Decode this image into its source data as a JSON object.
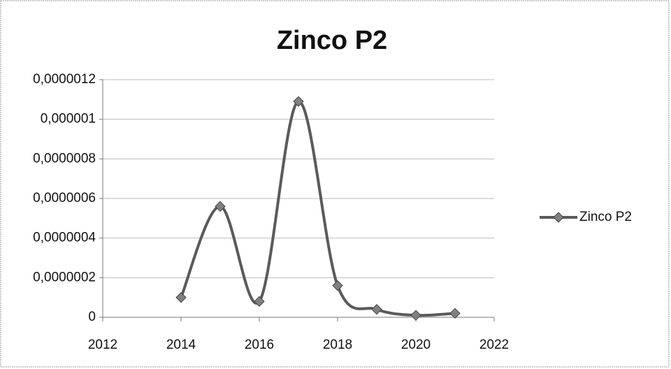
{
  "chart_data": {
    "type": "scatter-smooth",
    "title": "Zinco P2",
    "x": [
      2014,
      2015,
      2016,
      2017,
      2018,
      2019,
      2020,
      2021
    ],
    "series": [
      {
        "name": "Zinco P2",
        "color": "#5a5a5a",
        "values": [
          1e-07,
          5.6e-07,
          8e-08,
          1.09e-06,
          1.6e-07,
          4e-08,
          1e-08,
          2e-08
        ]
      }
    ],
    "xlim": [
      2012,
      2022
    ],
    "xticks": [
      2012,
      2014,
      2016,
      2018,
      2020,
      2022
    ],
    "ylim": [
      0,
      1.2e-06
    ],
    "yticks": [
      0,
      {
        "value": 2e-07,
        "label": "0,0000002"
      },
      {
        "value": 4e-07,
        "label": "0,0000004"
      },
      {
        "value": 6e-07,
        "label": "0,0000006"
      },
      {
        "value": 8e-07,
        "label": "0,0000008"
      },
      {
        "value": 1e-06,
        "label": "0,000001"
      },
      {
        "value": 1.2e-06,
        "label": "0,0000012"
      }
    ],
    "grid": true,
    "legend": "right"
  }
}
